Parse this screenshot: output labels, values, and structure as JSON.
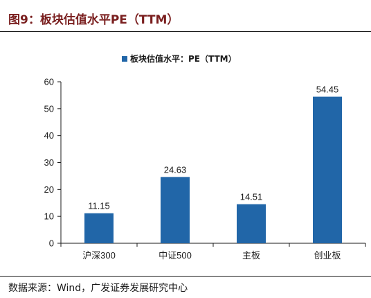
{
  "figure": {
    "title": "图9：板块估值水平PE（TTM）",
    "source": "数据来源：Wind，广发证券发展研究中心"
  },
  "chart_data": {
    "type": "bar",
    "categories": [
      "沪深300",
      "中证500",
      "主板",
      "创业板"
    ],
    "series": [
      {
        "name": "板块估值水平：PE（TTM）",
        "values": [
          11.15,
          24.63,
          14.51,
          54.45
        ],
        "color": "#2166a8"
      }
    ],
    "data_labels": [
      "11.15",
      "24.63",
      "14.51",
      "54.45"
    ],
    "ylim": [
      0,
      60
    ],
    "yticks": [
      0,
      10,
      20,
      30,
      40,
      50,
      60
    ],
    "xlabel": "",
    "ylabel": "",
    "legend_position": "top-center",
    "grid": false
  }
}
